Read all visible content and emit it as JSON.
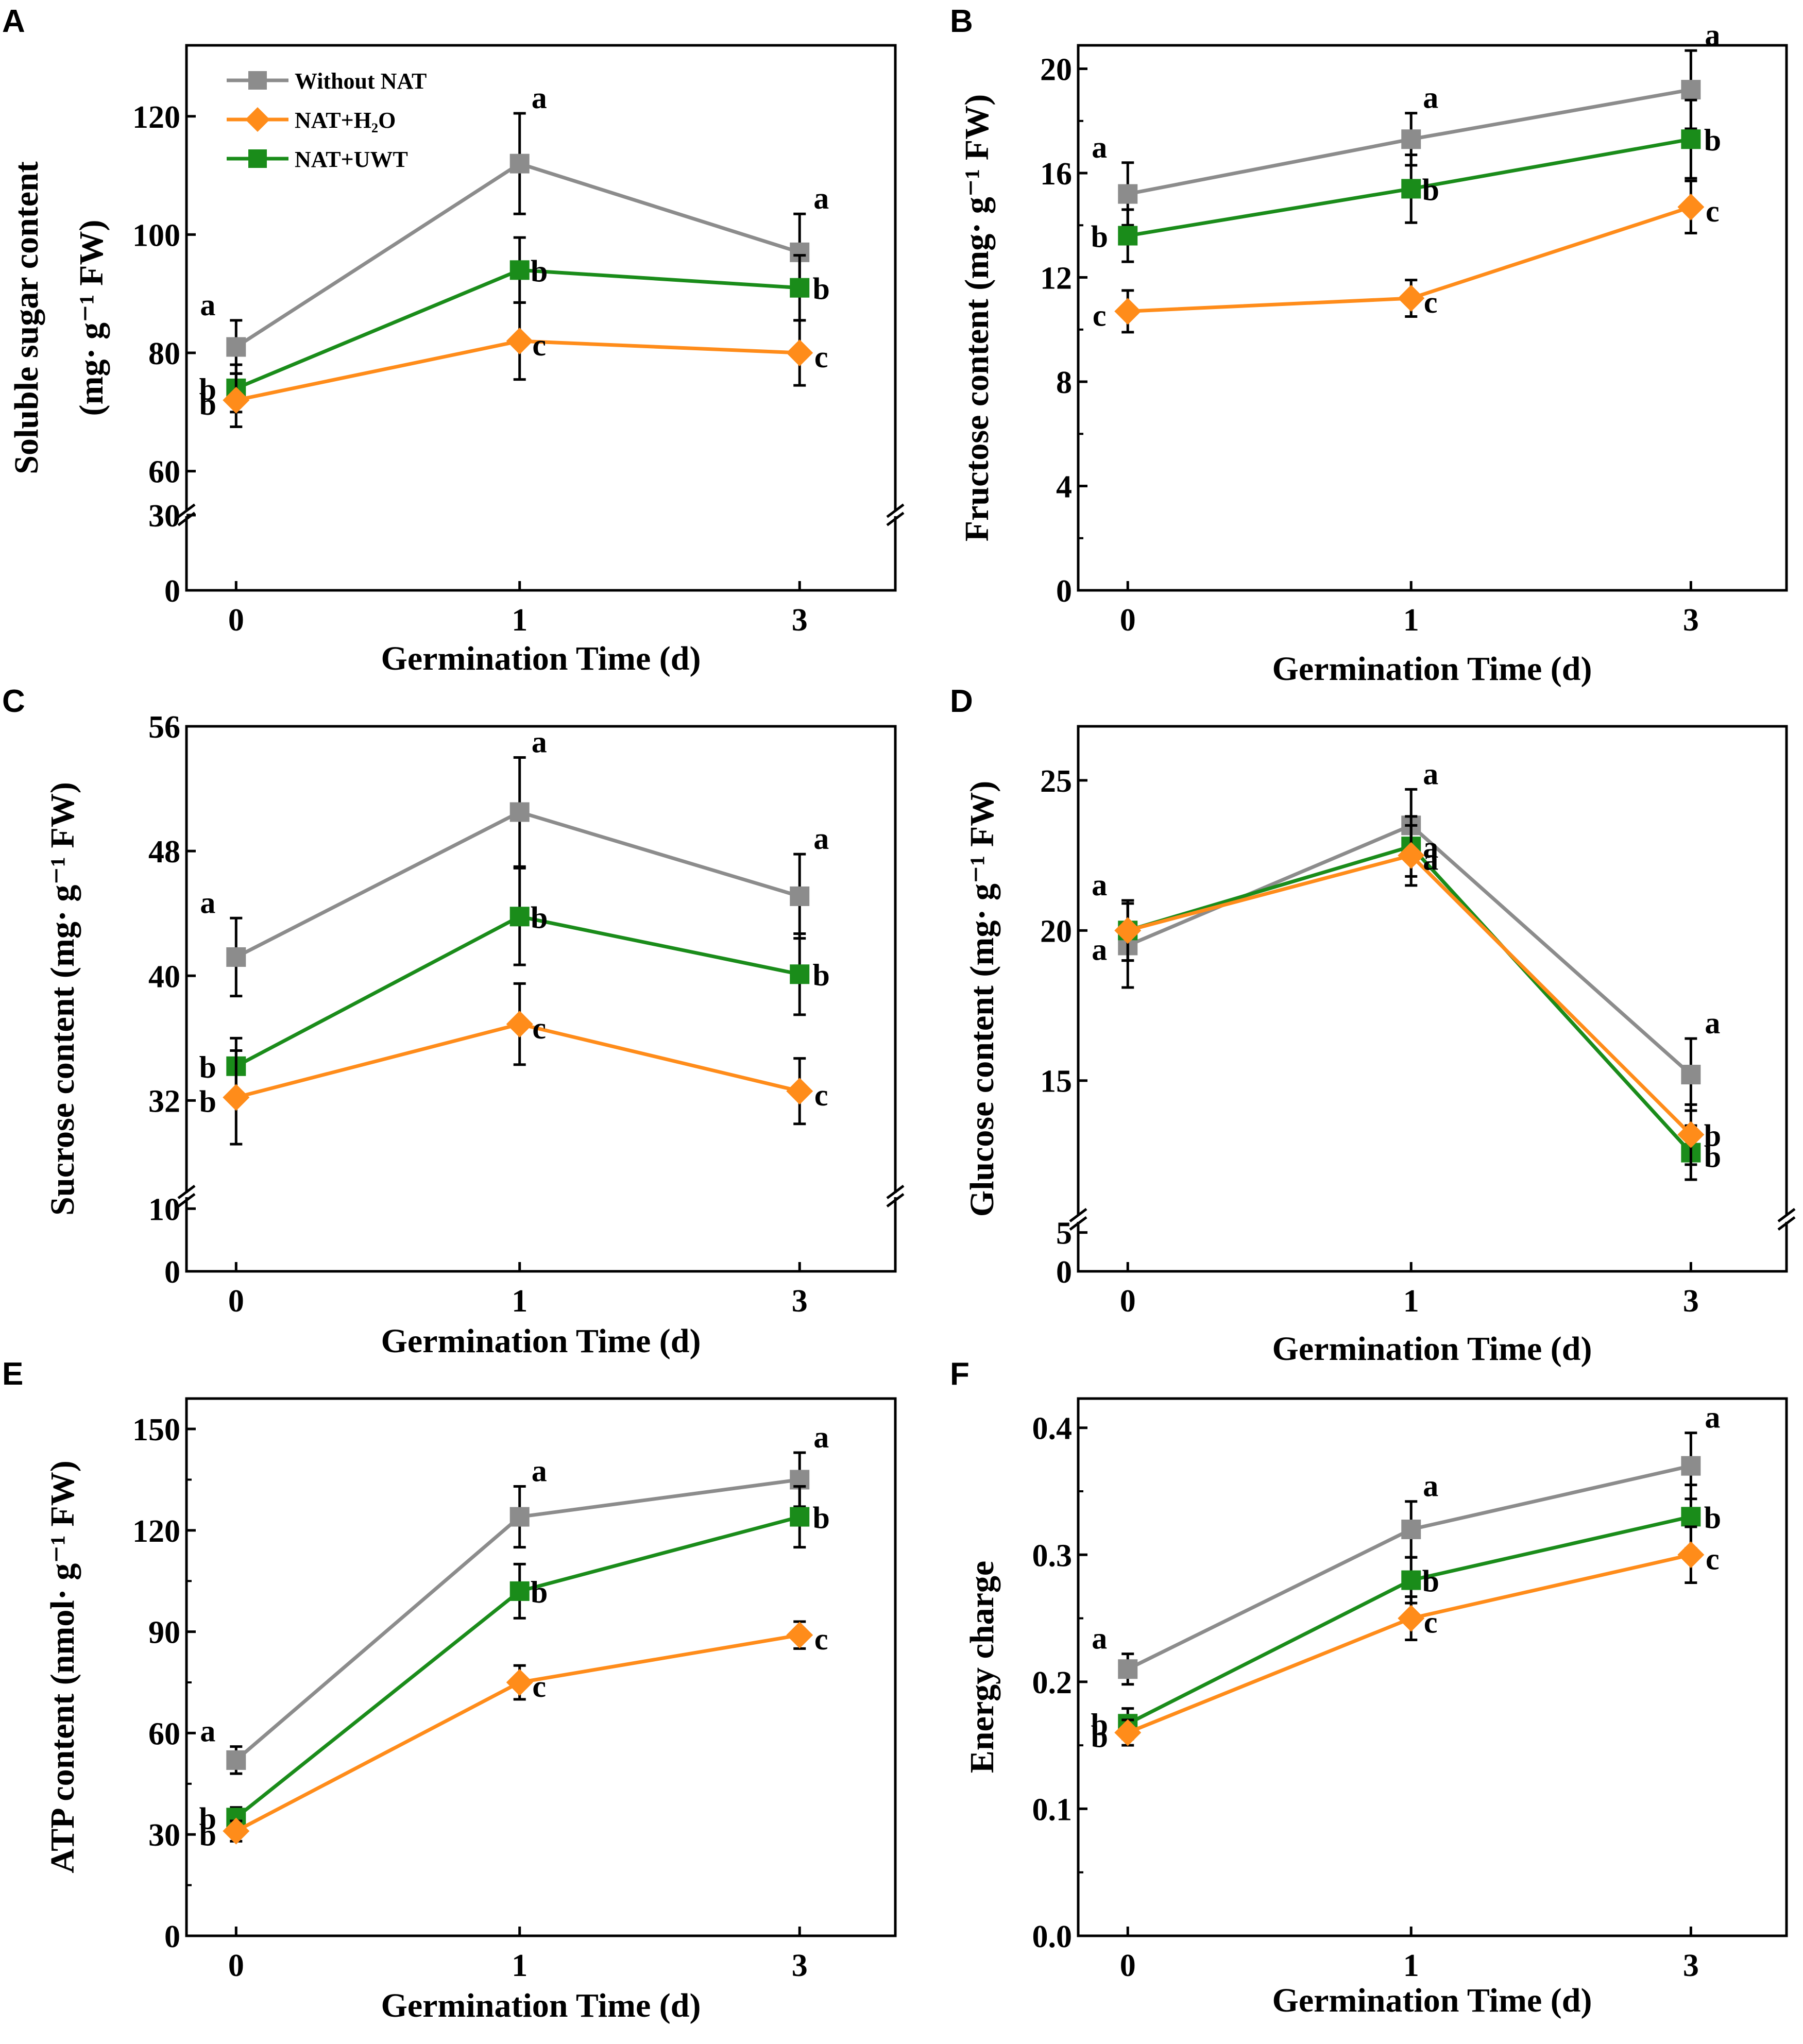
{
  "figure": {
    "legend": [
      {
        "name": "Without NAT",
        "color": "#8c8c8c",
        "marker": "square"
      },
      {
        "name": "NAT+H₂O",
        "color": "#ff8c1a",
        "marker": "diamond"
      },
      {
        "name": "NAT+UWT",
        "color": "#1a8c1a",
        "marker": "square"
      }
    ]
  },
  "chart_data": [
    {
      "panel": "A",
      "type": "line",
      "title": "",
      "xlabel": "Germination Time (d)",
      "ylabel_lines": [
        "Soluble sugar content",
        "(mg· g⁻¹ FW)"
      ],
      "categories": [
        "0",
        "1",
        "3"
      ],
      "y_break": {
        "lower": [
          0,
          30
        ],
        "lower_ticks": [
          0,
          30
        ],
        "upper": [
          53,
          132
        ],
        "upper_ticks": [
          60,
          80,
          100,
          120
        ]
      },
      "series": [
        {
          "name": "Without NAT",
          "values": [
            81,
            112,
            97
          ],
          "err": [
            4.5,
            8.5,
            6.5
          ],
          "labels": [
            "a",
            "a",
            "a"
          ]
        },
        {
          "name": "NAT+H₂O",
          "values": [
            72,
            82,
            80
          ],
          "err": [
            4.5,
            6.5,
            5.5
          ],
          "labels": [
            "b",
            "c",
            "c"
          ]
        },
        {
          "name": "NAT+UWT",
          "values": [
            74,
            94,
            91
          ],
          "err": [
            4,
            5.5,
            5.5
          ],
          "labels": [
            "b",
            "b",
            "b"
          ]
        }
      ]
    },
    {
      "panel": "B",
      "type": "line",
      "title": "",
      "xlabel": "Germination Time (d)",
      "ylabel_lines": [
        "Fructose content (mg· g⁻¹ FW)"
      ],
      "categories": [
        "0",
        "1",
        "3"
      ],
      "ylim": [
        0,
        20.9
      ],
      "yticks": [
        0,
        4,
        8,
        12,
        16,
        20
      ],
      "series": [
        {
          "name": "Without NAT",
          "values": [
            15.2,
            17.3,
            19.2
          ],
          "err": [
            1.2,
            1.0,
            1.5
          ],
          "labels": [
            "a",
            "a",
            "a"
          ]
        },
        {
          "name": "NAT+H₂O",
          "values": [
            10.7,
            11.2,
            14.7
          ],
          "err": [
            0.8,
            0.7,
            1.0
          ],
          "labels": [
            "c",
            "c",
            "c"
          ]
        },
        {
          "name": "NAT+UWT",
          "values": [
            13.6,
            15.4,
            17.3
          ],
          "err": [
            1.0,
            1.3,
            1.5
          ],
          "labels": [
            "b",
            "b",
            "b"
          ]
        }
      ]
    },
    {
      "panel": "C",
      "type": "line",
      "title": "",
      "xlabel": "Germination Time (d)",
      "ylabel_lines": [
        "Sucrose content (mg· g⁻¹ FW)"
      ],
      "categories": [
        "0",
        "1",
        "3"
      ],
      "y_break": {
        "lower": [
          0,
          12
        ],
        "lower_ticks": [
          0,
          10
        ],
        "upper": [
          26,
          56
        ],
        "upper_ticks": [
          32,
          40,
          48,
          56
        ]
      },
      "series": [
        {
          "name": "Without NAT",
          "values": [
            41.2,
            50.5,
            45.1
          ],
          "err": [
            2.5,
            3.5,
            2.7
          ],
          "labels": [
            "a",
            "a",
            "a"
          ]
        },
        {
          "name": "NAT+H₂O",
          "values": [
            32.2,
            36.9,
            32.6
          ],
          "err": [
            3.0,
            2.6,
            2.1
          ],
          "labels": [
            "b",
            "c",
            "c"
          ]
        },
        {
          "name": "NAT+UWT",
          "values": [
            34.2,
            43.8,
            40.1
          ],
          "err": [
            1.8,
            3.1,
            2.6
          ],
          "labels": [
            "b",
            "b",
            "b"
          ]
        }
      ]
    },
    {
      "panel": "D",
      "type": "line",
      "title": "",
      "xlabel": "Germination Time (d)",
      "ylabel_lines": [
        "Glucose content (mg· g⁻¹ FW)"
      ],
      "categories": [
        "0",
        "1",
        "3"
      ],
      "y_break": {
        "lower": [
          0,
          6.5
        ],
        "lower_ticks": [
          0,
          5
        ],
        "upper": [
          10.5,
          26.8
        ],
        "upper_ticks": [
          15,
          20,
          25
        ]
      },
      "series": [
        {
          "name": "Without NAT",
          "values": [
            19.5,
            23.5,
            15.2
          ],
          "err": [
            1.4,
            1.2,
            1.2
          ],
          "labels": [
            "a",
            "a",
            "a"
          ]
        },
        {
          "name": "NAT+H₂O",
          "values": [
            20.0,
            22.5,
            13.2
          ],
          "err": [
            1.0,
            1.0,
            1.0
          ],
          "labels": [
            "a",
            "a",
            "b"
          ]
        },
        {
          "name": "NAT+UWT",
          "values": [
            20.0,
            22.8,
            12.6
          ],
          "err": [
            1.0,
            1.0,
            0.9
          ],
          "labels": [
            "a",
            "a",
            "b"
          ]
        }
      ]
    },
    {
      "panel": "E",
      "type": "line",
      "title": "",
      "xlabel": "Germination Time (d)",
      "ylabel_lines": [
        "ATP content (nmol· g⁻¹ FW)"
      ],
      "categories": [
        "0",
        "1",
        "3"
      ],
      "ylim": [
        0,
        159
      ],
      "yticks": [
        0,
        30,
        60,
        90,
        120,
        150
      ],
      "series": [
        {
          "name": "Without NAT",
          "values": [
            52,
            124,
            135
          ],
          "err": [
            4,
            9,
            8
          ],
          "labels": [
            "a",
            "a",
            "a"
          ]
        },
        {
          "name": "NAT+H₂O",
          "values": [
            31,
            75,
            89
          ],
          "err": [
            3,
            5,
            4
          ],
          "labels": [
            "b",
            "c",
            "c"
          ]
        },
        {
          "name": "NAT+UWT",
          "values": [
            35,
            102,
            124
          ],
          "err": [
            3,
            8,
            9
          ],
          "labels": [
            "b",
            "b",
            "b"
          ]
        }
      ]
    },
    {
      "panel": "F",
      "type": "line",
      "title": "",
      "xlabel": "Germination Time (d)",
      "ylabel_lines": [
        "Energy charge"
      ],
      "categories": [
        "0",
        "1",
        "3"
      ],
      "ylim": [
        0,
        0.423
      ],
      "yticks": [
        0.0,
        0.1,
        0.2,
        0.3,
        0.4
      ],
      "tick_decimals": 1,
      "series": [
        {
          "name": "Without NAT",
          "values": [
            0.21,
            0.32,
            0.37
          ],
          "err": [
            0.012,
            0.022,
            0.026
          ],
          "labels": [
            "a",
            "a",
            "a"
          ]
        },
        {
          "name": "NAT+H₂O",
          "values": [
            0.16,
            0.25,
            0.3
          ],
          "err": [
            0.01,
            0.017,
            0.022
          ],
          "labels": [
            "b",
            "c",
            "c"
          ]
        },
        {
          "name": "NAT+UWT",
          "values": [
            0.167,
            0.28,
            0.33
          ],
          "err": [
            0.012,
            0.018,
            0.025
          ],
          "labels": [
            "b",
            "b",
            "b"
          ]
        }
      ]
    }
  ]
}
